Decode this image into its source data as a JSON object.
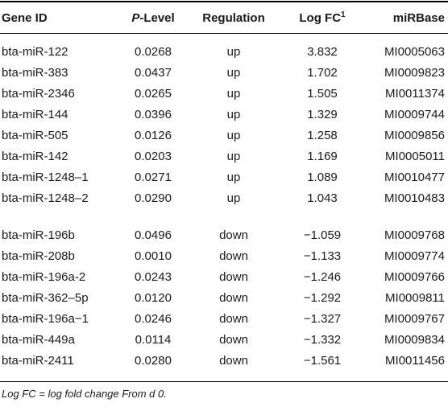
{
  "table": {
    "headers": {
      "gene_id": "Gene ID",
      "p_level_prefix": "P",
      "p_level_suffix": "-Level",
      "regulation": "Regulation",
      "log_fc": "Log FC",
      "log_fc_sup": "1",
      "mirbase": "miRBase"
    },
    "rows": [
      {
        "gene": "bta-miR-122",
        "p": "0.0268",
        "reg": "up",
        "fc": "3.832",
        "mirbase": "MI0005063"
      },
      {
        "gene": "bta-miR-383",
        "p": "0.0437",
        "reg": "up",
        "fc": "1.702",
        "mirbase": "MI0009823"
      },
      {
        "gene": "bta-miR-2346",
        "p": "0.0265",
        "reg": "up",
        "fc": "1.505",
        "mirbase": "MI0011374"
      },
      {
        "gene": "bta-miR-144",
        "p": "0.0396",
        "reg": "up",
        "fc": "1.329",
        "mirbase": "MI0009744"
      },
      {
        "gene": "bta-miR-505",
        "p": "0.0126",
        "reg": "up",
        "fc": "1.258",
        "mirbase": "MI0009856"
      },
      {
        "gene": "bta-miR-142",
        "p": "0.0203",
        "reg": "up",
        "fc": "1.169",
        "mirbase": "MI0005011"
      },
      {
        "gene": "bta-miR-1248–1",
        "p": "0.0271",
        "reg": "up",
        "fc": "1.089",
        "mirbase": "MI0010477"
      },
      {
        "gene": "bta-miR-1248–2",
        "p": "0.0290",
        "reg": "up",
        "fc": "1.043",
        "mirbase": "MI0010483"
      },
      {
        "gene": "bta-miR-196b",
        "p": "0.0496",
        "reg": "down",
        "fc": "−1.059",
        "mirbase": "MI0009768"
      },
      {
        "gene": "bta-miR-208b",
        "p": "0.0010",
        "reg": "down",
        "fc": "−1.133",
        "mirbase": "MI0009774"
      },
      {
        "gene": "bta-miR-196a-2",
        "p": "0.0243",
        "reg": "down",
        "fc": "−1.246",
        "mirbase": "MI0009766"
      },
      {
        "gene": "bta-miR-362–5p",
        "p": "0.0120",
        "reg": "down",
        "fc": "−1.292",
        "mirbase": "MI0009811"
      },
      {
        "gene": "bta-miR-196a−1",
        "p": "0.0246",
        "reg": "down",
        "fc": "−1.327",
        "mirbase": "MI0009767"
      },
      {
        "gene": "bta-miR-449a",
        "p": "0.0114",
        "reg": "down",
        "fc": "−1.332",
        "mirbase": "MI0009834"
      },
      {
        "gene": "bta-miR-2411",
        "p": "0.0280",
        "reg": "down",
        "fc": "−1.561",
        "mirbase": "MI0011456"
      }
    ]
  },
  "footnote": "Log FC = log fold change From d 0."
}
